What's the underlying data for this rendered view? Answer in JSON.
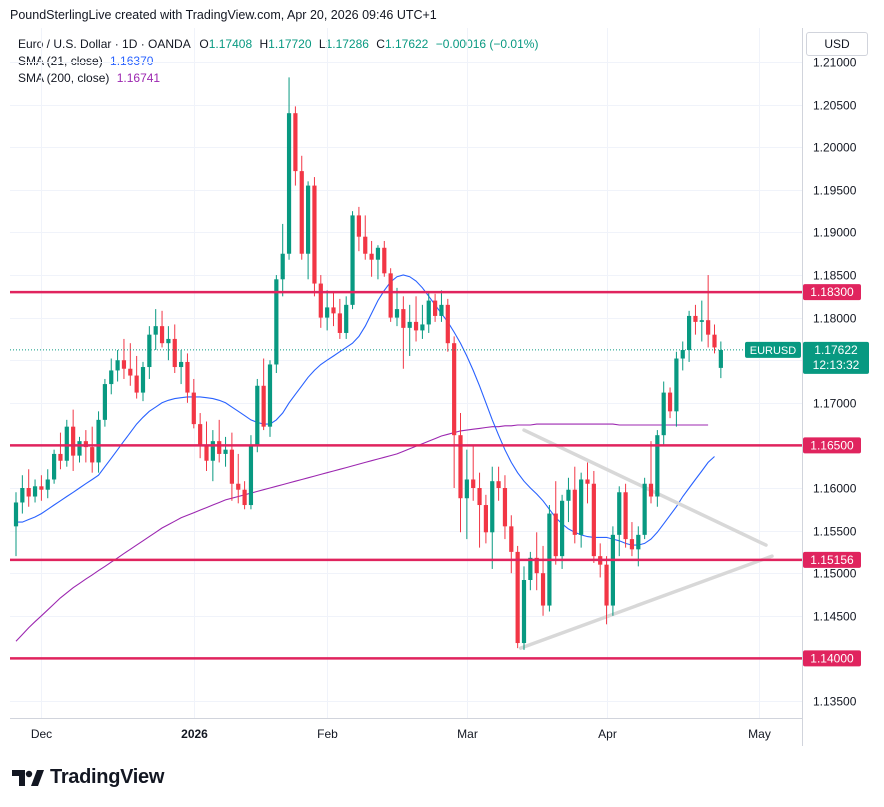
{
  "header": {
    "text": "PoundSterlingLive created with TradingView.com, Apr 20, 2026 09:46 UTC+1"
  },
  "legend": {
    "symbol": "Euro / U.S. Dollar · 1D · OANDA",
    "o_label": "O",
    "o": "1.17408",
    "h_label": "H",
    "h": "1.17720",
    "l_label": "L",
    "l": "1.17286",
    "c_label": "C",
    "c": "1.17622",
    "change": "−0.00016 (−0.01%)",
    "sma21_label": "SMA (21, close)",
    "sma21": "1.16370",
    "sma200_label": "SMA (200, close)",
    "sma200": "1.16741"
  },
  "currency": "USD",
  "brand": {
    "name": "TradingView"
  },
  "colors": {
    "up": "#089981",
    "down": "#f23645",
    "level": "#e0245e",
    "sma21": "#2962ff",
    "sma200": "#9c27b0",
    "triangle": "#d8d8d8"
  },
  "chart_data": {
    "type": "candlestick",
    "symbol": "EURUSD",
    "timeframe": "1D",
    "ylim": [
      1.133,
      1.214
    ],
    "yticks": [
      "1.13500",
      "1.14000",
      "1.14500",
      "1.15000",
      "1.15500",
      "1.16000",
      "1.16500",
      "1.17000",
      "1.17500",
      "1.18000",
      "1.18500",
      "1.19000",
      "1.19500",
      "1.20000",
      "1.20500",
      "1.21000"
    ],
    "xticks": [
      "Dec",
      "2026",
      "Feb",
      "Mar",
      "Apr",
      "May"
    ],
    "levels": [
      "1.18300",
      "1.16500",
      "1.15156",
      "1.14000"
    ],
    "last_price": {
      "label": "EURUSD",
      "value": "1.17622",
      "countdown": "12:13:32"
    },
    "candles": [
      [
        1.1555,
        1.1595,
        1.152,
        1.1583
      ],
      [
        1.1583,
        1.1615,
        1.157,
        1.16
      ],
      [
        1.16,
        1.1622,
        1.1578,
        1.159
      ],
      [
        1.159,
        1.161,
        1.1583,
        1.1602
      ],
      [
        1.1602,
        1.1615,
        1.1585,
        1.1598
      ],
      [
        1.1598,
        1.1622,
        1.1588,
        1.161
      ],
      [
        1.161,
        1.1645,
        1.1605,
        1.164
      ],
      [
        1.164,
        1.1665,
        1.1622,
        1.1632
      ],
      [
        1.1632,
        1.168,
        1.1625,
        1.1672
      ],
      [
        1.1672,
        1.1692,
        1.162,
        1.1638
      ],
      [
        1.1638,
        1.166,
        1.163,
        1.1655
      ],
      [
        1.1655,
        1.1668,
        1.163,
        1.1648
      ],
      [
        1.1648,
        1.1672,
        1.1618,
        1.163
      ],
      [
        1.163,
        1.169,
        1.1618,
        1.168
      ],
      [
        1.168,
        1.1728,
        1.1672,
        1.1722
      ],
      [
        1.1722,
        1.1752,
        1.171,
        1.1738
      ],
      [
        1.1738,
        1.1762,
        1.1725,
        1.175
      ],
      [
        1.175,
        1.1775,
        1.1728,
        1.174
      ],
      [
        1.174,
        1.177,
        1.172,
        1.1732
      ],
      [
        1.1732,
        1.1755,
        1.1705,
        1.1712
      ],
      [
        1.1712,
        1.1748,
        1.1702,
        1.1742
      ],
      [
        1.1742,
        1.179,
        1.1728,
        1.178
      ],
      [
        1.178,
        1.181,
        1.1762,
        1.179
      ],
      [
        1.179,
        1.1808,
        1.1765,
        1.177
      ],
      [
        1.177,
        1.179,
        1.175,
        1.1775
      ],
      [
        1.1775,
        1.1792,
        1.1735,
        1.1742
      ],
      [
        1.1742,
        1.1762,
        1.1722,
        1.1748
      ],
      [
        1.1748,
        1.1758,
        1.17,
        1.1712
      ],
      [
        1.1712,
        1.1728,
        1.167,
        1.1675
      ],
      [
        1.1675,
        1.1688,
        1.1635,
        1.165
      ],
      [
        1.165,
        1.1678,
        1.162,
        1.1632
      ],
      [
        1.1632,
        1.1668,
        1.1608,
        1.1655
      ],
      [
        1.1655,
        1.168,
        1.163,
        1.164
      ],
      [
        1.164,
        1.166,
        1.1625,
        1.1645
      ],
      [
        1.1645,
        1.1665,
        1.1585,
        1.1605
      ],
      [
        1.1605,
        1.164,
        1.1582,
        1.1598
      ],
      [
        1.1598,
        1.1608,
        1.1575,
        1.158
      ],
      [
        1.158,
        1.1662,
        1.1575,
        1.165
      ],
      [
        1.165,
        1.1728,
        1.1642,
        1.172
      ],
      [
        1.172,
        1.1752,
        1.1668,
        1.1672
      ],
      [
        1.1672,
        1.175,
        1.166,
        1.1745
      ],
      [
        1.1745,
        1.185,
        1.1735,
        1.1845
      ],
      [
        1.1845,
        1.191,
        1.1825,
        1.1875
      ],
      [
        1.1875,
        1.2082,
        1.1868,
        1.204
      ],
      [
        1.204,
        1.2048,
        1.1955,
        1.1972
      ],
      [
        1.1972,
        1.199,
        1.1868,
        1.1875
      ],
      [
        1.1875,
        1.196,
        1.1845,
        1.1955
      ],
      [
        1.1955,
        1.1965,
        1.1825,
        1.184
      ],
      [
        1.184,
        1.185,
        1.1788,
        1.18
      ],
      [
        1.18,
        1.1832,
        1.1785,
        1.1812
      ],
      [
        1.1812,
        1.183,
        1.179,
        1.1805
      ],
      [
        1.1805,
        1.1822,
        1.1775,
        1.1782
      ],
      [
        1.1782,
        1.1825,
        1.1775,
        1.1815
      ],
      [
        1.1815,
        1.1925,
        1.181,
        1.192
      ],
      [
        1.192,
        1.193,
        1.1878,
        1.1895
      ],
      [
        1.1895,
        1.192,
        1.1868,
        1.1875
      ],
      [
        1.1875,
        1.189,
        1.1848,
        1.1868
      ],
      [
        1.1868,
        1.1885,
        1.1845,
        1.1882
      ],
      [
        1.1882,
        1.189,
        1.1848,
        1.1852
      ],
      [
        1.1852,
        1.1858,
        1.1795,
        1.18
      ],
      [
        1.18,
        1.1835,
        1.179,
        1.181
      ],
      [
        1.181,
        1.1825,
        1.174,
        1.1788
      ],
      [
        1.1788,
        1.1815,
        1.1755,
        1.1795
      ],
      [
        1.1795,
        1.1825,
        1.1772,
        1.1785
      ],
      [
        1.1785,
        1.1815,
        1.1775,
        1.1792
      ],
      [
        1.1792,
        1.183,
        1.1782,
        1.182
      ],
      [
        1.182,
        1.1828,
        1.1795,
        1.1802
      ],
      [
        1.1802,
        1.1832,
        1.1795,
        1.1815
      ],
      [
        1.1815,
        1.1822,
        1.176,
        1.177
      ],
      [
        1.177,
        1.1778,
        1.16,
        1.1662
      ],
      [
        1.1662,
        1.1688,
        1.1548,
        1.1588
      ],
      [
        1.1588,
        1.1645,
        1.154,
        1.161
      ],
      [
        1.161,
        1.165,
        1.1585,
        1.16
      ],
      [
        1.16,
        1.1618,
        1.153,
        1.158
      ],
      [
        1.158,
        1.1592,
        1.1535,
        1.1548
      ],
      [
        1.1548,
        1.1625,
        1.1505,
        1.1608
      ],
      [
        1.1608,
        1.1625,
        1.1585,
        1.16
      ],
      [
        1.16,
        1.1615,
        1.154,
        1.1555
      ],
      [
        1.1555,
        1.1568,
        1.15,
        1.1525
      ],
      [
        1.1525,
        1.1532,
        1.1412,
        1.1418
      ],
      [
        1.1418,
        1.1508,
        1.141,
        1.1492
      ],
      [
        1.1492,
        1.1525,
        1.148,
        1.1518
      ],
      [
        1.1518,
        1.1548,
        1.148,
        1.15
      ],
      [
        1.15,
        1.1532,
        1.145,
        1.1462
      ],
      [
        1.1462,
        1.158,
        1.1455,
        1.157
      ],
      [
        1.157,
        1.1608,
        1.151,
        1.152
      ],
      [
        1.152,
        1.1592,
        1.1505,
        1.1585
      ],
      [
        1.1585,
        1.1612,
        1.156,
        1.1598
      ],
      [
        1.1598,
        1.1625,
        1.1535,
        1.1545
      ],
      [
        1.1545,
        1.1618,
        1.153,
        1.161
      ],
      [
        1.161,
        1.163,
        1.1582,
        1.1605
      ],
      [
        1.1605,
        1.162,
        1.1512,
        1.152
      ],
      [
        1.152,
        1.1535,
        1.1495,
        1.151
      ],
      [
        1.151,
        1.152,
        1.144,
        1.1462
      ],
      [
        1.1462,
        1.1555,
        1.145,
        1.1545
      ],
      [
        1.1545,
        1.1602,
        1.152,
        1.1595
      ],
      [
        1.1595,
        1.1605,
        1.153,
        1.154
      ],
      [
        1.154,
        1.156,
        1.152,
        1.1528
      ],
      [
        1.1528,
        1.1555,
        1.1508,
        1.1545
      ],
      [
        1.1545,
        1.1612,
        1.154,
        1.1605
      ],
      [
        1.1605,
        1.1655,
        1.1582,
        1.159
      ],
      [
        1.159,
        1.1668,
        1.1578,
        1.1662
      ],
      [
        1.1662,
        1.1725,
        1.165,
        1.1712
      ],
      [
        1.1712,
        1.1718,
        1.1682,
        1.169
      ],
      [
        1.169,
        1.176,
        1.1672,
        1.1752
      ],
      [
        1.1752,
        1.1772,
        1.1738,
        1.1762
      ],
      [
        1.1762,
        1.1808,
        1.1748,
        1.1802
      ],
      [
        1.1802,
        1.1815,
        1.178,
        1.1795
      ],
      [
        1.1795,
        1.182,
        1.1772,
        1.1797
      ],
      [
        1.1797,
        1.185,
        1.1765,
        1.178
      ],
      [
        1.178,
        1.1792,
        1.1758,
        1.1765
      ],
      [
        1.1741,
        1.1772,
        1.1729,
        1.1762
      ]
    ],
    "sma21": [
      1.156,
      1.156,
      1.1563,
      1.1566,
      1.157,
      1.1575,
      1.158,
      1.1585,
      1.159,
      1.1595,
      1.16,
      1.1605,
      1.161,
      1.1615,
      1.1625,
      1.1635,
      1.1645,
      1.1655,
      1.1665,
      1.1675,
      1.1683,
      1.169,
      1.1695,
      1.17,
      1.1703,
      1.1705,
      1.1706,
      1.1707,
      1.1707,
      1.1707,
      1.1706,
      1.1705,
      1.1703,
      1.17,
      1.1695,
      1.169,
      1.1685,
      1.168,
      1.1677,
      1.1675,
      1.1675,
      1.168,
      1.1688,
      1.17,
      1.171,
      1.172,
      1.173,
      1.1738,
      1.1745,
      1.175,
      1.1755,
      1.176,
      1.1765,
      1.177,
      1.1778,
      1.179,
      1.1805,
      1.182,
      1.1832,
      1.1842,
      1.1848,
      1.185,
      1.1848,
      1.1843,
      1.1835,
      1.1825,
      1.1815,
      1.1805,
      1.1795,
      1.1783,
      1.177,
      1.1755,
      1.1738,
      1.172,
      1.17,
      1.168,
      1.1662,
      1.1645,
      1.163,
      1.1618,
      1.1608,
      1.16,
      1.1593,
      1.1585,
      1.1575,
      1.1565,
      1.1558,
      1.1552,
      1.1548,
      1.1545,
      1.1543,
      1.1542,
      1.1542,
      1.1542,
      1.154,
      1.1538,
      1.1535,
      1.1533,
      1.1533,
      1.1535,
      1.154,
      1.1548,
      1.1558,
      1.1568,
      1.1578,
      1.159,
      1.16,
      1.161,
      1.162,
      1.163,
      1.1637
    ],
    "sma200": [
      1.142,
      1.1428,
      1.1436,
      1.1443,
      1.145,
      1.1457,
      1.1464,
      1.1471,
      1.1477,
      1.1483,
      1.1488,
      1.1493,
      1.1498,
      1.1503,
      1.1508,
      1.1513,
      1.1518,
      1.1523,
      1.1528,
      1.1533,
      1.1538,
      1.1543,
      1.1548,
      1.1553,
      1.1557,
      1.1561,
      1.1565,
      1.1568,
      1.1571,
      1.1574,
      1.1577,
      1.158,
      1.1583,
      1.1586,
      1.1588,
      1.159,
      1.1592,
      1.1594,
      1.1596,
      1.1598,
      1.16,
      1.1602,
      1.1604,
      1.1606,
      1.1608,
      1.161,
      1.1612,
      1.1614,
      1.1616,
      1.1618,
      1.162,
      1.1622,
      1.1624,
      1.1626,
      1.1628,
      1.163,
      1.1632,
      1.1634,
      1.1636,
      1.1638,
      1.164,
      1.1643,
      1.1646,
      1.1649,
      1.1652,
      1.1655,
      1.1658,
      1.1661,
      1.1663,
      1.1665,
      1.1667,
      1.1668,
      1.1669,
      1.167,
      1.1671,
      1.1672,
      1.1672,
      1.1673,
      1.1673,
      1.1674,
      1.1674,
      1.1674,
      1.1675,
      1.1675,
      1.1675,
      1.1675,
      1.1675,
      1.1675,
      1.1675,
      1.1675,
      1.1675,
      1.1675,
      1.1675,
      1.1675,
      1.1675,
      1.1674,
      1.1674,
      1.1674,
      1.1674,
      1.1674,
      1.1674,
      1.1674,
      1.1674,
      1.1674,
      1.1674,
      1.1674,
      1.1674,
      1.1674,
      1.1674,
      1.1674
    ]
  }
}
